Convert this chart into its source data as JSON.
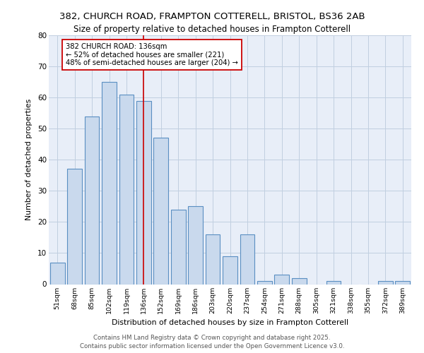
{
  "title_line1": "382, CHURCH ROAD, FRAMPTON COTTERELL, BRISTOL, BS36 2AB",
  "title_line2": "Size of property relative to detached houses in Frampton Cotterell",
  "xlabel": "Distribution of detached houses by size in Frampton Cotterell",
  "ylabel": "Number of detached properties",
  "categories": [
    "51sqm",
    "68sqm",
    "85sqm",
    "102sqm",
    "119sqm",
    "136sqm",
    "152sqm",
    "169sqm",
    "186sqm",
    "203sqm",
    "220sqm",
    "237sqm",
    "254sqm",
    "271sqm",
    "288sqm",
    "305sqm",
    "321sqm",
    "338sqm",
    "355sqm",
    "372sqm",
    "389sqm"
  ],
  "values": [
    7,
    37,
    54,
    65,
    61,
    59,
    47,
    24,
    25,
    16,
    9,
    16,
    1,
    3,
    2,
    0,
    1,
    0,
    0,
    1,
    1
  ],
  "bar_color": "#c9d9ed",
  "bar_edge_color": "#5a8fc2",
  "marker_index": 5,
  "marker_label": "382 CHURCH ROAD: 136sqm\n← 52% of detached houses are smaller (221)\n48% of semi-detached houses are larger (204) →",
  "marker_line_color": "#cc0000",
  "annotation_box_edge_color": "#cc0000",
  "ylim": [
    0,
    80
  ],
  "yticks": [
    0,
    10,
    20,
    30,
    40,
    50,
    60,
    70,
    80
  ],
  "grid_color": "#c0cfe0",
  "background_color": "#e8eef8",
  "footer_line1": "Contains HM Land Registry data © Crown copyright and database right 2025.",
  "footer_line2": "Contains public sector information licensed under the Open Government Licence v3.0."
}
